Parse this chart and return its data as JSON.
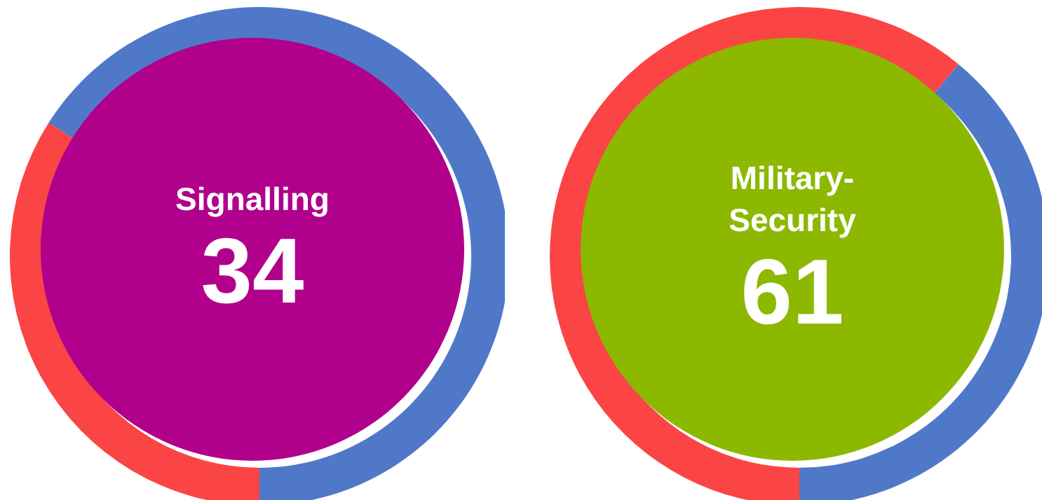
{
  "chart_data": [
    {
      "type": "donut",
      "title": "Signalling",
      "categories": [
        null,
        null
      ],
      "values": [
        34,
        66
      ],
      "colors": [
        "#fb4444",
        "#5078c8"
      ],
      "annotations": [
        "34"
      ]
    },
    {
      "type": "donut",
      "title": "Military-Security",
      "categories": [
        null,
        null
      ],
      "values": [
        61,
        39
      ],
      "colors": [
        "#fb4444",
        "#5078c8"
      ],
      "annotations": [
        "61"
      ]
    }
  ]
}
